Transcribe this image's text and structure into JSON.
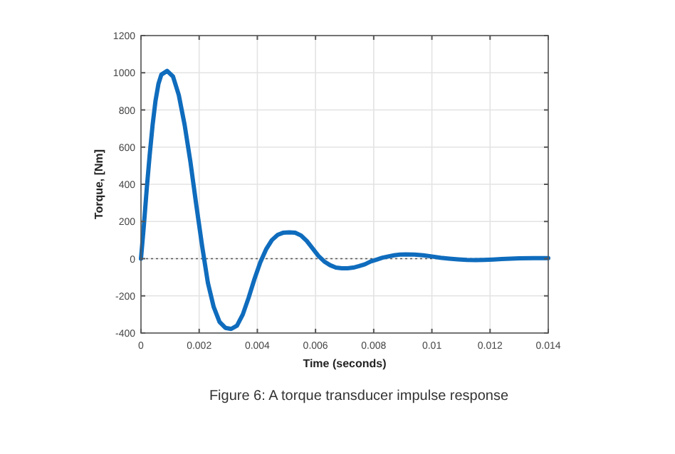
{
  "chart_data": {
    "type": "line",
    "xlabel": "Time (seconds)",
    "ylabel": "Torque, [Nm]",
    "annotations": [
      "Figure 6: A torque transducer impulse response"
    ],
    "x": [
      0,
      0.0001,
      0.0002,
      0.0003,
      0.0004,
      0.0005,
      0.0006,
      0.0007,
      0.0009,
      0.0011,
      0.0013,
      0.0015,
      0.0017,
      0.0019,
      0.0021,
      0.0023,
      0.0025,
      0.0027,
      0.0029,
      0.0031,
      0.0033,
      0.0035,
      0.0037,
      0.0039,
      0.0041,
      0.0043,
      0.0045,
      0.0047,
      0.0049,
      0.0051,
      0.0053,
      0.0055,
      0.0057,
      0.0059,
      0.0061,
      0.0063,
      0.0065,
      0.0067,
      0.0069,
      0.0071,
      0.0073,
      0.0075,
      0.0077,
      0.0079,
      0.0081,
      0.0083,
      0.0085,
      0.0087,
      0.0089,
      0.0091,
      0.0094,
      0.0097,
      0.01,
      0.0103,
      0.0106,
      0.0109,
      0.0112,
      0.0115,
      0.0118,
      0.0121,
      0.0124,
      0.0127,
      0.013,
      0.0135,
      0.014
    ],
    "series": [
      {
        "color": "#0f6cbd",
        "values": [
          0,
          180,
          380,
          560,
          720,
          850,
          940,
          990,
          1010,
          980,
          880,
          720,
          520,
          290,
          70,
          -130,
          -260,
          -340,
          -372,
          -378,
          -360,
          -300,
          -210,
          -110,
          -20,
          50,
          100,
          128,
          140,
          142,
          140,
          125,
          95,
          55,
          15,
          -15,
          -35,
          -48,
          -52,
          -52,
          -48,
          -40,
          -30,
          -15,
          -5,
          5,
          12,
          18,
          22,
          23,
          22,
          18,
          12,
          5,
          0,
          -4,
          -7,
          -8,
          -7,
          -5,
          -2,
          0,
          2,
          3,
          3
        ]
      }
    ],
    "xlim": [
      0,
      0.014
    ],
    "xticks": [
      0,
      0.002,
      0.004,
      0.006,
      0.008,
      0.01,
      0.012,
      0.014
    ],
    "ylim": [
      -400,
      1200
    ],
    "yticks": [
      -400,
      -200,
      0,
      200,
      400,
      600,
      800,
      1000,
      1200
    ],
    "grid": true,
    "line_style": "solid",
    "marker": "none",
    "ref_lines": [
      {
        "axis": "y",
        "value": 0,
        "line_style": "dotted",
        "color": "#555555"
      }
    ]
  }
}
